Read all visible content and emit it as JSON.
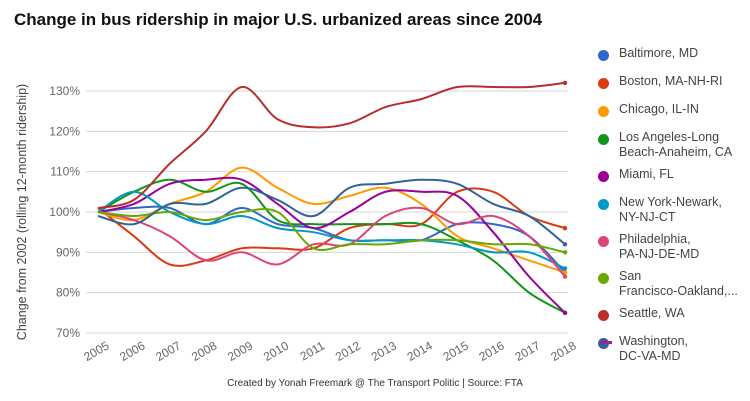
{
  "chart_data": {
    "type": "line",
    "title": "Change in bus ridership in major U.S. urbanized areas since 2004",
    "ylabel": "Change from 2002 (rolling 12-month ridership)",
    "xlabel": "",
    "x": [
      "2005",
      "2006",
      "2007",
      "2008",
      "2009",
      "2010",
      "2011",
      "2012",
      "2013",
      "2014",
      "2015",
      "2016",
      "2017",
      "2018"
    ],
    "y_ticks": [
      "70%",
      "80%",
      "90%",
      "100%",
      "110%",
      "120%",
      "130%"
    ],
    "ylim": [
      70,
      135
    ],
    "grid": true,
    "legend_position": "right",
    "series": [
      {
        "name": "Baltimore, MD",
        "color": "#3366cc",
        "values": [
          100,
          101,
          101,
          97,
          101,
          97,
          96,
          93,
          93,
          93,
          97,
          97,
          94,
          85
        ]
      },
      {
        "name": "Boston, MA-NH-RI",
        "color": "#dc3912",
        "values": [
          101,
          94,
          87,
          88,
          91,
          91,
          91,
          96,
          97,
          97,
          105,
          105,
          99,
          96
        ]
      },
      {
        "name": "Chicago, IL-IN",
        "color": "#ff9900",
        "values": [
          100,
          98,
          102,
          105,
          111,
          106,
          102,
          104,
          106,
          102,
          94,
          91,
          88,
          85
        ]
      },
      {
        "name": "Los Angeles-Long\nBeach-Anaheim, CA",
        "color": "#109618",
        "values": [
          100,
          105,
          108,
          105,
          107,
          98,
          97,
          97,
          97,
          97,
          93,
          88,
          80,
          75
        ]
      },
      {
        "name": "Miami, FL",
        "color": "#990099",
        "values": [
          100,
          102,
          107,
          108,
          108,
          102,
          96,
          100,
          105,
          105,
          104,
          95,
          84,
          75
        ]
      },
      {
        "name": "New York-Newark,\nNY-NJ-CT",
        "color": "#0099c6",
        "values": [
          100,
          105,
          100,
          97,
          99,
          96,
          95,
          93,
          93,
          93,
          92,
          90,
          90,
          86
        ]
      },
      {
        "name": "Philadelphia,\nPA-NJ-DE-MD",
        "color": "#dd4477",
        "values": [
          100,
          98,
          94,
          88,
          90,
          87,
          92,
          92,
          99,
          101,
          97,
          99,
          94,
          84
        ]
      },
      {
        "name": "San\nFrancisco-Oakland,...",
        "color": "#66aa00",
        "values": [
          100,
          99,
          100,
          98,
          100,
          100,
          91,
          92,
          92,
          93,
          93,
          92,
          92,
          90
        ]
      },
      {
        "name": "Seattle, WA",
        "color": "#b82e2e",
        "values": [
          101,
          103,
          112,
          120,
          131,
          123,
          121,
          122,
          126,
          128,
          131,
          131,
          131,
          132
        ]
      },
      {
        "name": "Washington,\nDC-VA-MD",
        "color": "#316395",
        "values": [
          99,
          97,
          102,
          102,
          106,
          103,
          99,
          106,
          107,
          108,
          107,
          102,
          99,
          92
        ]
      }
    ]
  },
  "legend_more_color": "#9b1fa8",
  "credit": "Created by Yonah Freemark @ The Transport Politic | Source: FTA"
}
